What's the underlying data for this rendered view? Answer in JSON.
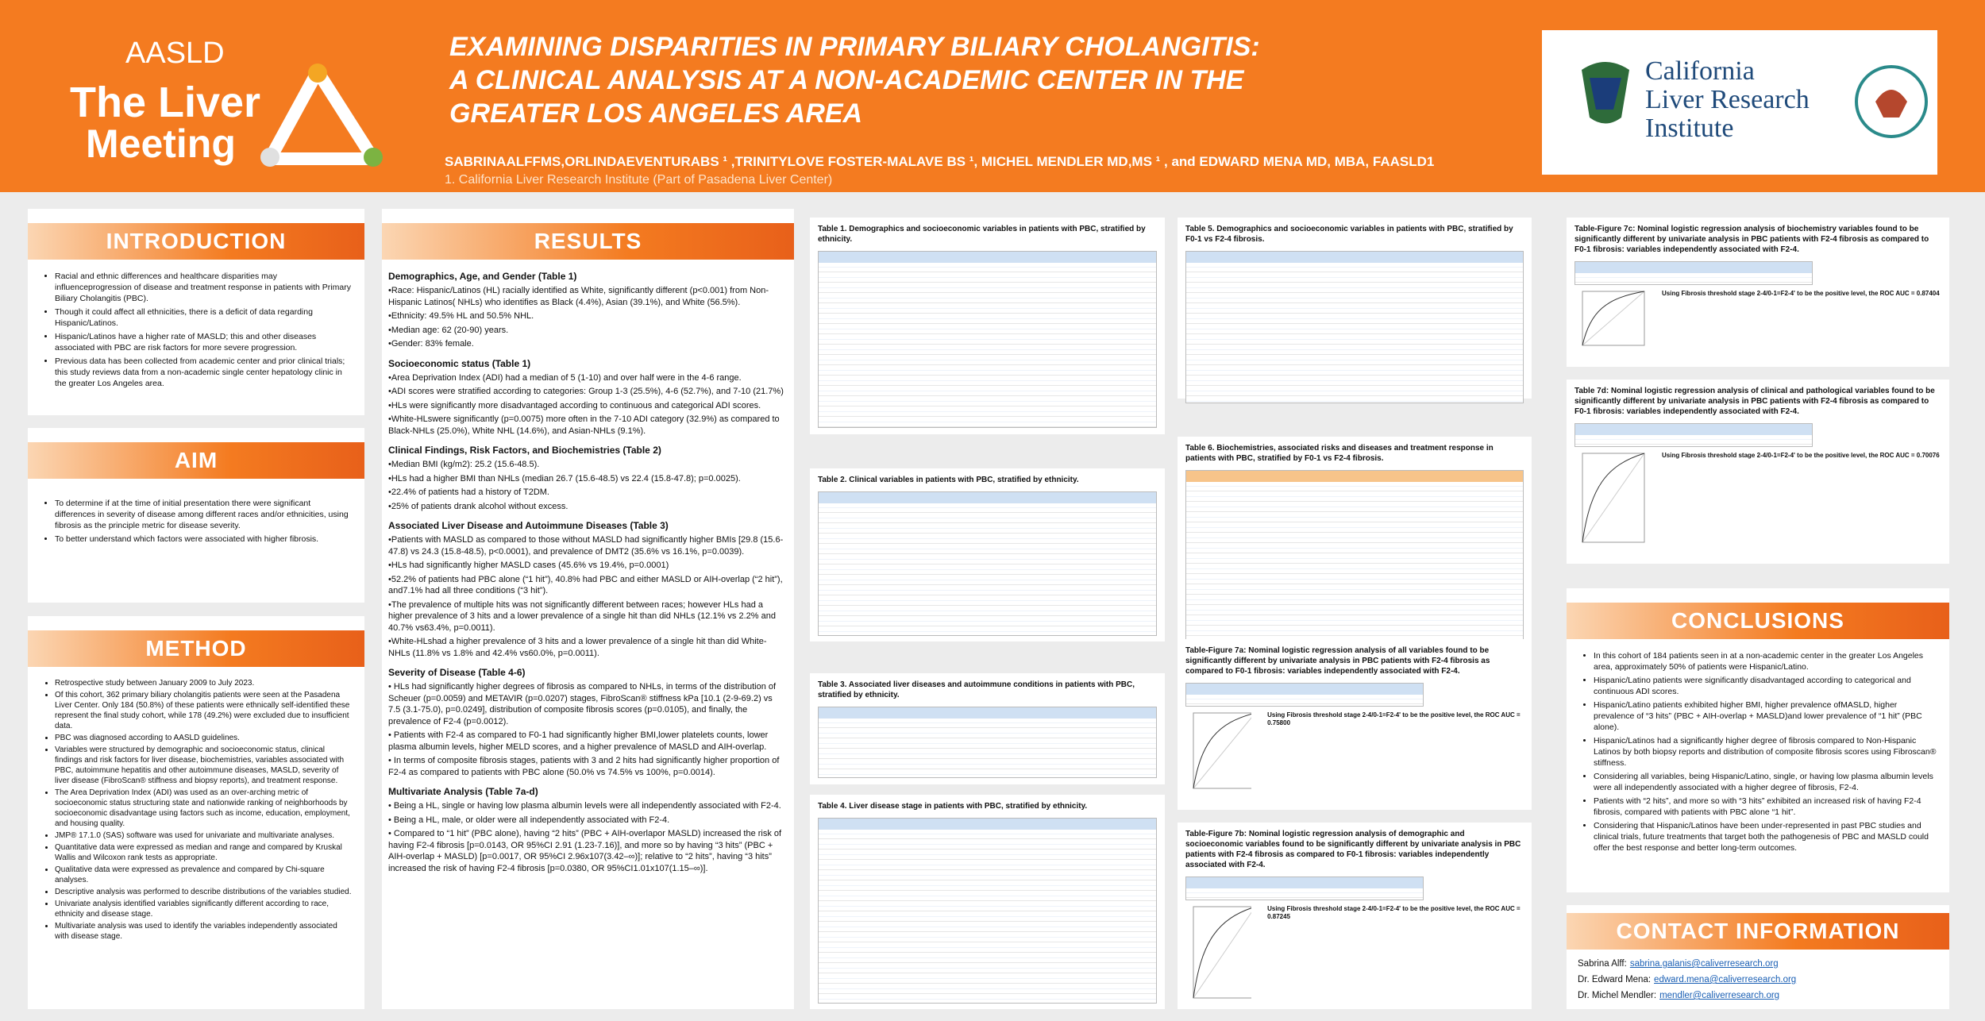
{
  "header": {
    "logo_left": [
      "AASLD",
      "The Liver",
      "Meeting"
    ],
    "title": [
      "EXAMINING DISPARITIES IN PRIMARY BILIARY CHOLANGITIS:",
      "A CLINICAL ANALYSIS AT A NON-ACADEMIC CENTER IN THE",
      "GREATER LOS ANGELES AREA"
    ],
    "authors": "SABRINAALFFMS,ORLINDAEVENTURABS ¹ ,TRINITYLOVE FOSTER-MALAVE BS ¹, MICHEL MENDLER MD,MS ¹ , and EDWARD MENA MD, MBA, FAASLD1",
    "affiliation": "1. California Liver Research Institute (Part of Pasadena Liver Center)",
    "logo_right": [
      "California",
      "Liver Research",
      "Institute"
    ]
  },
  "introduction": {
    "heading": "INTRODUCTION",
    "bullets": [
      "Racial and ethnic differences and healthcare disparities may influenceprogression of disease and treatment response in patients with Primary Biliary Cholangitis (PBC).",
      "Though it could affect all ethnicities, there is a deficit of data regarding Hispanic/Latinos.",
      "Hispanic/Latinos have a higher rate of MASLD; this and other diseases associated with PBC are risk factors for more severe progression.",
      "Previous data has been collected from academic center and prior clinical trials; this study reviews data from a non-academic single center hepatology clinic in the greater Los Angeles area."
    ]
  },
  "aim": {
    "heading": "AIM",
    "bullets": [
      "To determine if at the time of initial presentation there were significant differences in severity of disease among different races and/or ethnicities, using fibrosis as the principle metric for disease severity.",
      "To better understand which factors were associated with higher fibrosis."
    ]
  },
  "method": {
    "heading": "METHOD",
    "bullets": [
      "Retrospective study between January 2009 to July 2023.",
      "Of this cohort, 362 primary biliary cholangitis patients were seen at the Pasadena Liver Center. Only 184 (50.8%) of these patients were ethnically self-identified these represent the final study cohort, while 178 (49.2%) were excluded due to insufficient data.",
      "PBC was diagnosed according to AASLD guidelines.",
      "Variables were structured by demographic and socioeconomic status, clinical findings and risk factors for liver disease, biochemistries, variables associated with PBC, autoimmune hepatitis and other autoimmune diseases, MASLD, severity of liver disease (FibroScan® stiffness and biopsy reports), and treatment response.",
      "The Area Deprivation Index (ADI) was used as an over-arching metric of socioeconomic status structuring state and nationwide ranking of neighborhoods by socioeconomic disadvantage using factors such as income, education, employment, and housing quality.",
      "JMP® 17.1.0 (SAS) software was used for univariate and multivariate analyses.",
      "Quantitative data were expressed as median and range and compared by Kruskal Wallis and Wilcoxon rank tests as appropriate.",
      "Qualitative data were expressed as prevalence and compared by Chi-square analyses.",
      "Descriptive analysis was performed to describe distributions of the variables studied.",
      "Univariate analysis identified variables significantly different according to race, ethnicity and disease stage.",
      "Multivariate analysis was used to identify the variables independently associated with disease stage."
    ]
  },
  "results": {
    "heading": "RESULTS",
    "sections": [
      {
        "title": "Demographics, Age, and Gender (Table 1)",
        "items": [
          "•Race: Hispanic/Latinos (HL) racially identified as White, significantly different (p<0.001) from Non-Hispanic Latinos( NHLs) who identifies as Black (4.4%), Asian (39.1%), and White (56.5%).",
          "•Ethnicity: 49.5% HL and 50.5% NHL.",
          "•Median age: 62 (20-90) years.",
          "•Gender: 83% female."
        ]
      },
      {
        "title": "Socioeconomic status (Table 1)",
        "items": [
          "•Area Deprivation Index (ADI) had a median of 5 (1-10) and over half were in the 4-6 range.",
          "•ADI scores were stratified according to categories: Group 1-3 (25.5%), 4-6 (52.7%), and 7-10 (21.7%)",
          "•HLs were significantly more disadvantaged according to continuous and categorical ADI scores.",
          "•White-HLswere significantly (p=0.0075) more often in the 7-10 ADI category (32.9%) as compared to Black-NHLs (25.0%), White NHL (14.6%), and Asian-NHLs (9.1%)."
        ]
      },
      {
        "title": "Clinical Findings, Risk Factors, and Biochemistries (Table 2)",
        "items": [
          "•Median BMI (kg/m2): 25.2 (15.6-48.5).",
          "•HLs had a higher BMI than NHLs (median 26.7 (15.6-48.5) vs 22.4 (15.8-47.8); p=0.0025).",
          "•22.4% of patients had a history of T2DM.",
          "•25% of patients drank alcohol without excess."
        ]
      },
      {
        "title": "Associated Liver Disease and Autoimmune Diseases (Table 3)",
        "items": [
          "•Patients with MASLD as compared to those without MASLD had significantly higher BMIs [29.8 (15.6-47.8) vs 24.3 (15.8-48.5), p<0.0001), and prevalence of DMT2 (35.6% vs 16.1%, p=0.0039).",
          "•HLs had significantly higher MASLD cases (45.6% vs 19.4%, p=0.0001)",
          "•52.2% of patients had PBC alone (“1 hit”), 40.8% had PBC and either MASLD or AIH-overlap (“2 hit”), and7.1% had all three conditions (“3 hit”).",
          "•The prevalence of multiple hits was not significantly different between races; however HLs had a higher prevalence of 3 hits and a lower prevalence of a single hit than did NHLs (12.1% vs 2.2% and 40.7% vs63.4%, p=0.0011).",
          "•White-HLshad a higher prevalence of 3 hits and a lower prevalence of a single hit than did White-NHLs (11.8% vs 1.8% and 42.4% vs60.0%, p=0.0011)."
        ]
      },
      {
        "title": "Severity of Disease (Table 4-6)",
        "items": [
          "•  HLs had significantly higher degrees of fibrosis as compared to NHLs, in terms of the distribution of Scheuer (p=0.0059) and METAVIR (p=0.0207) stages, FibroScan® stiffness kPa [10.1 (2-9-69.2) vs 7.5 (3.1-75.0), p=0.0249], distribution of composite fibrosis scores (p=0.0105), and finally, the prevalence of F2-4 (p=0.0012).",
          "•  Patients with F2-4 as compared to F0-1 had significantly higher BMI,lower platelets counts, lower plasma albumin levels, higher MELD scores, and a higher prevalence of MASLD and AIH-overlap.",
          "•  In terms of composite fibrosis stages, patients with 3 and 2 hits had significantly higher proportion of F2-4 as compared to patients with PBC alone (50.0% vs 74.5% vs 100%, p=0.0014)."
        ]
      },
      {
        "title": "Multivariate Analysis (Table 7a-d)",
        "items": [
          "•  Being a HL, single or having low plasma albumin levels were all independently associated with F2-4.",
          "•  Being a HL, male, or older were all independently associated with F2-4.",
          "•  Compared to “1 hit” (PBC alone), having “2 hits” (PBC + AIH-overlapor MASLD) increased the risk of having F2-4 fibrosis [p=0.0143, OR 95%CI 2.91 (1.23-7.16)], and more so by having “3 hits” (PBC + AIH-overlap + MASLD) [p=0.0017, OR 95%CI 2.96x107(3.42–∞)]; relative to “2 hits”, having “3 hits” increased the risk of having F2-4 fibrosis [p=0.0380, OR 95%CI1.01x107(1.15–∞)]."
        ]
      }
    ]
  },
  "tables": [
    {
      "title": "Table 1. Demographics and socioeconomic variables in patients with PBC, stratified by ethnicity."
    },
    {
      "title": "Table 2. Clinical variables in patients with PBC, stratified by ethnicity."
    },
    {
      "title": "Table 3. Associated liver diseases and autoimmune conditions in patients with PBC, stratified by ethnicity."
    },
    {
      "title": "Table 4. Liver disease stage in patients with PBC, stratified by ethnicity."
    },
    {
      "title": "Table 5. Demographics and socioeconomic variables in patients with PBC, stratified by F0-1 vs F2-4 fibrosis."
    },
    {
      "title": "Table 6. Biochemistries, associated risks and diseases and treatment response in patients with PBC, stratified by F0-1 vs F2-4 fibrosis."
    }
  ],
  "figures": [
    {
      "title": "Table-Figure 7a: Nominal logistic regression analysis of all variables found to be significantly different by univariate analysis in PBC patients with F2-4 fibrosis as compared to F0-1 fibrosis: variables independently associated with F2-4.",
      "note": "Using Fibrosis threshold stage 2-4/0-1=F2-4' to be the positive level, the ROC AUC = 0.75800"
    },
    {
      "title": "Table-Figure 7b: Nominal logistic regression analysis of demographic and socioeconomic variables found to be significantly different by univariate analysis in PBC patients with F2-4 fibrosis as compared to F0-1 fibrosis: variables independently associated with F2-4.",
      "note": "Using Fibrosis threshold stage 2-4/0-1=F2-4' to be the positive level, the ROC AUC = 0.87245"
    },
    {
      "title": "Table-Figure 7c: Nominal logistic regression analysis of biochemistry variables found to be significantly different by univariate analysis in PBC patients with F2-4 fibrosis as compared to F0-1 fibrosis: variables independently associated with F2-4.",
      "note": "Using Fibrosis threshold stage 2-4/0-1=F2-4' to be the positive level, the ROC AUC = 0.87404"
    },
    {
      "title": "Table 7d: Nominal logistic regression analysis of clinical and pathological variables found to be significantly different by univariate analysis in PBC patients with F2-4 fibrosis as compared to F0-1 fibrosis: variables independently associated with F2-4.",
      "note": "Using Fibrosis threshold stage 2-4/0-1=F2-4' to be the positive level, the ROC AUC = 0.70076"
    }
  ],
  "conclusions": {
    "heading": "CONCLUSIONS",
    "bullets": [
      "In this cohort of 184 patients seen in at a non-academic center in the greater Los Angeles area, approximately 50% of patients were Hispanic/Latino.",
      "Hispanic/Latino patients were significantly disadvantaged according to categorical and continuous ADI scores.",
      "Hispanic/Latino patients exhibited higher BMI, higher prevalence ofMASLD, higher prevalence of “3 hits” (PBC + AIH-overlap + MASLD)and lower prevalence of “1 hit” (PBC alone).",
      "Hispanic/Latinos had a significantly higher degree of fibrosis compared to Non-Hispanic Latinos by both biopsy reports and distribution of composite fibrosis scores using Fibroscan® stiffness.",
      "Considering all variables, being Hispanic/Latino, single, or having low plasma albumin levels were all independently associated with a higher degree of fibrosis, F2-4.",
      "Patients with “2 hits”, and more so with “3 hits” exhibited an increased risk of having F2-4 fibrosis, compared with patients with PBC alone “1 hit”.",
      "Considering that Hispanic/Latinos have been under-represented in past PBC studies and clinical trials, future treatments that target both the pathogenesis of PBC and MASLD could offer the best response and better long-term outcomes."
    ]
  },
  "contact": {
    "heading": "CONTACT INFORMATION",
    "people": [
      {
        "name": "Sabrina Alff:",
        "email": "sabrina.galanis@caliverresearch.org"
      },
      {
        "name": "Dr. Edward Mena:",
        "email": "edward.mena@caliverresearch.org"
      },
      {
        "name": "Dr. Michel Mendler:",
        "email": "mendler@caliverresearch.org"
      }
    ]
  }
}
